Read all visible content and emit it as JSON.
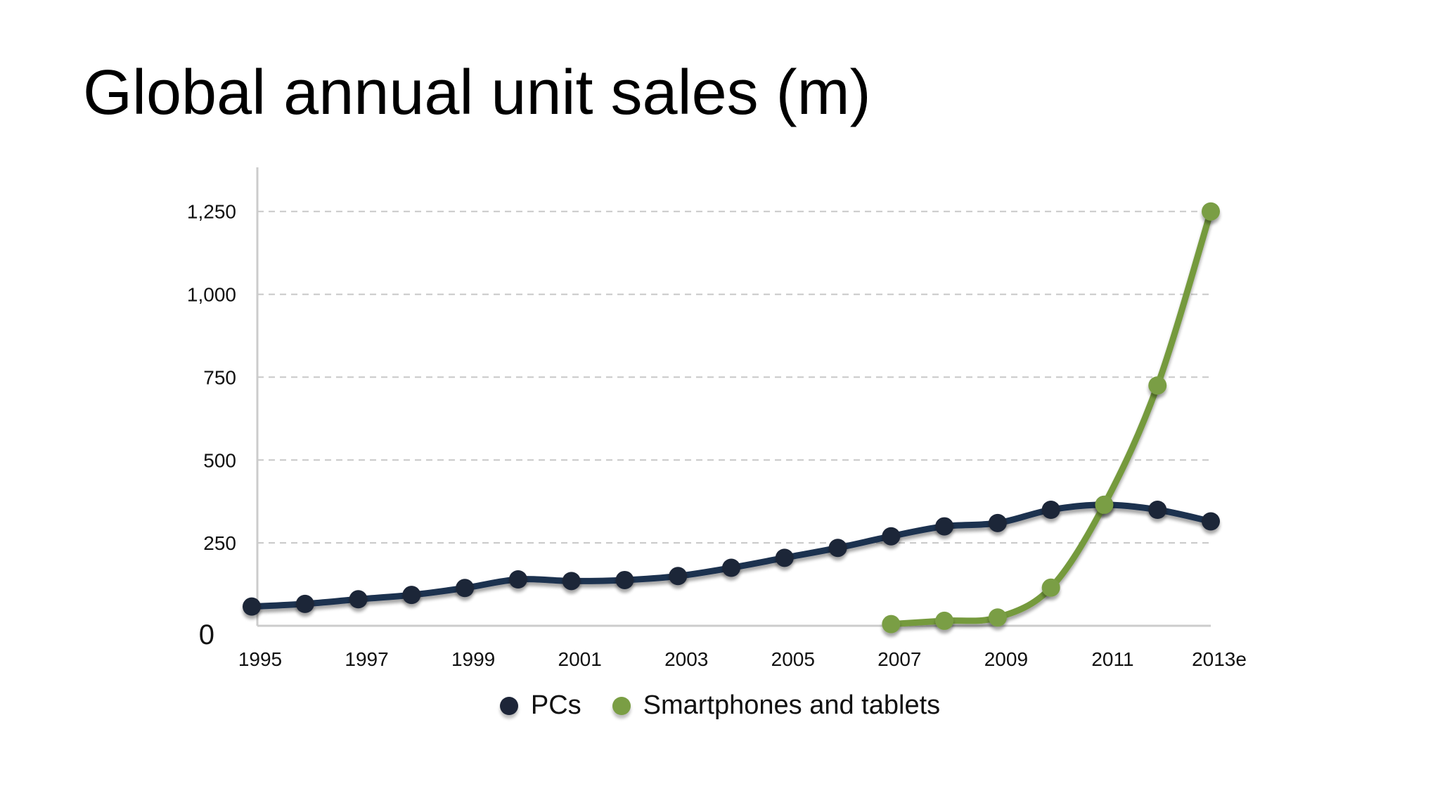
{
  "title": "Global annual unit sales (m)",
  "colors": {
    "pcs": "#1f3150",
    "pcs_marker": "#1d2538",
    "smart": "#759a3e",
    "smart_marker": "#7a9e44",
    "grid": "#c8c8c8",
    "axis": "#cccccc"
  },
  "chart_data": {
    "type": "line",
    "title": "Global annual unit sales (m)",
    "xlabel": "",
    "ylabel": "",
    "x": [
      1995,
      1996,
      1997,
      1998,
      1999,
      2000,
      2001,
      2002,
      2003,
      2004,
      2005,
      2006,
      2007,
      2008,
      2009,
      2010,
      2011,
      2012,
      2013
    ],
    "x_tick_labels": [
      "1995",
      "1997",
      "1999",
      "2001",
      "2003",
      "2005",
      "2007",
      "2009",
      "2011",
      "2013e"
    ],
    "x_tick_values": [
      1995,
      1997,
      1999,
      2001,
      2003,
      2005,
      2007,
      2009,
      2011,
      2013
    ],
    "y_tick_labels": [
      "0",
      "250",
      "500",
      "750",
      "1,000",
      "1,250"
    ],
    "y_tick_values": [
      0,
      250,
      500,
      750,
      1000,
      1250
    ],
    "ylim": [
      0,
      1400
    ],
    "xlim": [
      1995,
      2013
    ],
    "grid": true,
    "legend_position": "bottom",
    "series": [
      {
        "name": "PCs",
        "key": "pcs",
        "values": [
          58,
          66,
          80,
          93,
          114,
          140,
          135,
          138,
          150,
          175,
          205,
          235,
          270,
          300,
          310,
          350,
          365,
          350,
          315
        ]
      },
      {
        "name": "Smartphones and tablets",
        "key": "smart",
        "values": [
          null,
          null,
          null,
          null,
          null,
          null,
          null,
          null,
          null,
          null,
          null,
          null,
          5,
          15,
          25,
          115,
          365,
          725,
          1250
        ]
      }
    ]
  }
}
